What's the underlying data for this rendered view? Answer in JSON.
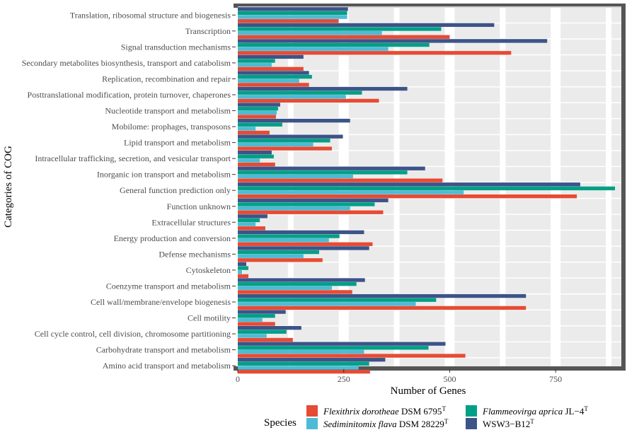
{
  "chart_data": {
    "type": "bar",
    "orientation": "horizontal",
    "xlabel": "Number of Genes",
    "ylabel": "Categories of COG",
    "xlim": [
      0,
      905
    ],
    "xticks": [
      0,
      250,
      500,
      750
    ],
    "grid": true,
    "legend_position": "bottom",
    "legend": {
      "title": "Species",
      "entries": [
        {
          "series": 0,
          "italic": "Flexithrix dorotheae",
          "rest": " DSM 6795",
          "sup": "T"
        },
        {
          "series": 1,
          "italic": "Sediminitomix flava",
          "rest": " DSM 28229",
          "sup": "T"
        },
        {
          "series": 2,
          "italic": "Flammeovirga aprica",
          "rest": " JL−4",
          "sup": "T"
        },
        {
          "series": 3,
          "italic": "",
          "rest": "WSW3−B12",
          "sup": "T"
        }
      ]
    },
    "categories": [
      "Translation, ribosomal structure and biogenesis",
      "Transcription",
      "Signal transduction mechanisms",
      "Secondary metabolites biosynthesis, transport and catabolism",
      "Replication, recombination and repair",
      "Posttranslational modification, protein turnover, chaperones",
      "Nucleotide transport and metabolism",
      "Mobilome: prophages, transposons",
      "Lipid transport and metabolism",
      "Intracellular trafficking, secretion, and vesicular transport",
      "Inorganic ion transport and metabolism",
      "General function prediction only",
      "Function unknown",
      "Extracellular structures",
      "Energy production and conversion",
      "Defense mechanisms",
      "Cytoskeleton",
      "Coenzyme transport and metabolism",
      "Cell wall/membrane/envelope biogenesis",
      "Cell motility",
      "Cell cycle control, cell division, chromosome partitioning",
      "Carbohydrate transport and metabolism",
      "Amino acid transport and metabolism"
    ],
    "series": [
      {
        "name": "Flexithrix dorotheae DSM 6795T",
        "color": "#E64B35",
        "values": [
          238,
          500,
          645,
          155,
          168,
          333,
          90,
          75,
          222,
          88,
          483,
          800,
          343,
          65,
          318,
          200,
          25,
          270,
          680,
          88,
          130,
          537,
          312
        ]
      },
      {
        "name": "Sediminitomix flava DSM 28229T",
        "color": "#4DBBD5",
        "values": [
          258,
          340,
          355,
          80,
          145,
          255,
          92,
          42,
          178,
          52,
          272,
          533,
          265,
          42,
          215,
          155,
          10,
          222,
          420,
          58,
          68,
          298,
          285
        ]
      },
      {
        "name": "Flammeovirga aprica JL-4T",
        "color": "#00A087",
        "values": [
          258,
          480,
          452,
          88,
          175,
          293,
          95,
          105,
          218,
          85,
          400,
          890,
          323,
          52,
          240,
          192,
          25,
          280,
          468,
          88,
          115,
          450,
          310
        ]
      },
      {
        "name": "WSW3-B12T",
        "color": "#3C5488",
        "values": [
          260,
          605,
          730,
          155,
          168,
          400,
          100,
          265,
          248,
          80,
          442,
          808,
          355,
          70,
          298,
          310,
          20,
          300,
          680,
          113,
          150,
          490,
          348
        ]
      }
    ]
  }
}
